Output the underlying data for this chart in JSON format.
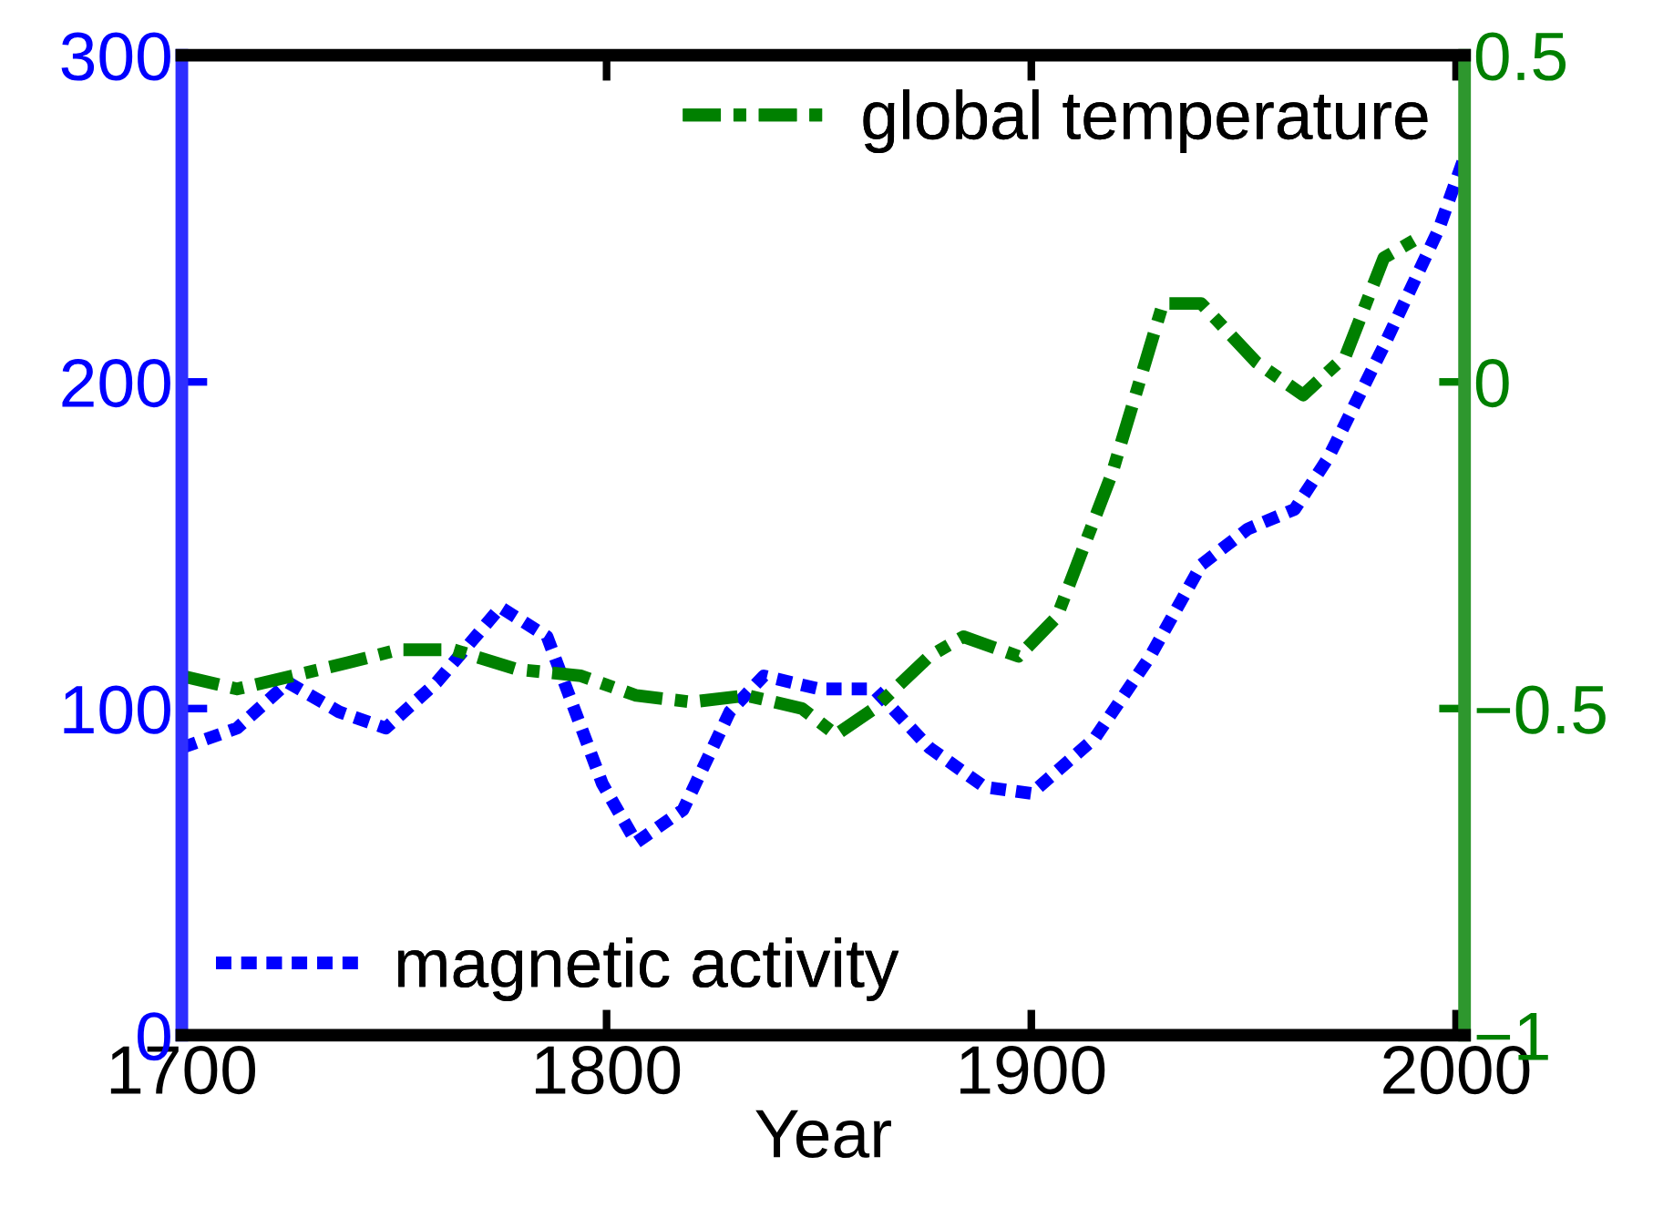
{
  "chart_data": {
    "type": "line",
    "xlabel": "Year",
    "xlim": [
      1700,
      2002
    ],
    "xticks": [
      1700,
      1800,
      1900,
      2000
    ],
    "ylim": [
      0,
      300
    ],
    "yticks": [
      0,
      100,
      200,
      300
    ],
    "y2lim": [
      -1,
      0.5
    ],
    "y2ticks": [
      {
        "value": -1,
        "label": "−1"
      },
      {
        "value": -0.5,
        "label": "−0.5"
      },
      0,
      0.5
    ],
    "grid": false,
    "marker": "none",
    "legend": [
      "bottom left",
      "top right"
    ],
    "series": [
      {
        "name": "magnetic activity",
        "color": "#0000ff",
        "axis": "y",
        "line_style": "dotted",
        "x": [
          1700,
          1713,
          1725,
          1737,
          1748,
          1760,
          1775,
          1786,
          1799,
          1807,
          1818,
          1829,
          1837,
          1850,
          1863,
          1876,
          1889,
          1900,
          1915,
          1928,
          1940,
          1951,
          1962,
          1970,
          1983,
          1996,
          2002
        ],
        "values": [
          88,
          94,
          108,
          99,
          94,
          108,
          131,
          122,
          77,
          59,
          69,
          99,
          110,
          106,
          106,
          88,
          76,
          74,
          91,
          116,
          144,
          155,
          161,
          177,
          211,
          247,
          269
        ]
      },
      {
        "name": "global temperature",
        "color": "#008000",
        "axis": "y2",
        "line_style": "dashdot",
        "x": [
          1700,
          1713,
          1726,
          1739,
          1751,
          1764,
          1779,
          1794,
          1807,
          1820,
          1833,
          1846,
          1854,
          1863,
          1876,
          1884,
          1897,
          1906,
          1919,
          1931,
          1940,
          1953,
          1964,
          1974,
          1983,
          1991
        ],
        "values": [
          -0.45,
          -0.47,
          -0.45,
          -0.43,
          -0.41,
          -0.41,
          -0.44,
          -0.45,
          -0.48,
          -0.49,
          -0.48,
          -0.5,
          -0.54,
          -0.5,
          -0.42,
          -0.39,
          -0.42,
          -0.36,
          -0.14,
          0.12,
          0.12,
          0.03,
          -0.02,
          0.04,
          0.19,
          0.22
        ]
      }
    ]
  }
}
